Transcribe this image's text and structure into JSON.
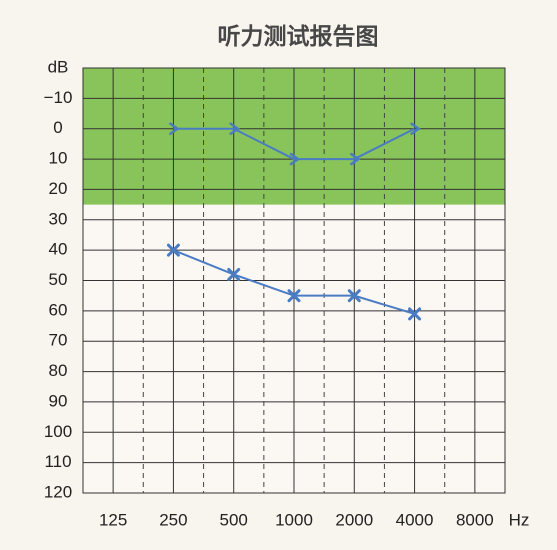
{
  "chart_data": {
    "type": "line",
    "title": "听力测试报告图",
    "x": [
      250,
      500,
      1000,
      2000,
      4000
    ],
    "xscale": "log",
    "xlim": [
      88.4,
      11314
    ],
    "xticks": [
      125,
      250,
      500,
      1000,
      2000,
      4000,
      8000
    ],
    "xlabel": "Hz",
    "ylim": [
      -20,
      120
    ],
    "yinverted": true,
    "yticks": [
      {
        "value": -20,
        "label": "dB"
      },
      {
        "value": -10,
        "label": "−10"
      },
      0,
      10,
      20,
      30,
      40,
      50,
      60,
      70,
      80,
      90,
      100,
      110,
      120
    ],
    "grid": true,
    "shaded_range": [
      -20,
      25
    ],
    "shaded_color": "#88c45a",
    "series": [
      {
        "color": "#4a7cc4",
        "marker": "chevron",
        "values": [
          0,
          0,
          10,
          10,
          0
        ]
      },
      {
        "color": "#4a7cc4",
        "marker": "x",
        "values": [
          40,
          48,
          55,
          55,
          61
        ]
      }
    ]
  }
}
